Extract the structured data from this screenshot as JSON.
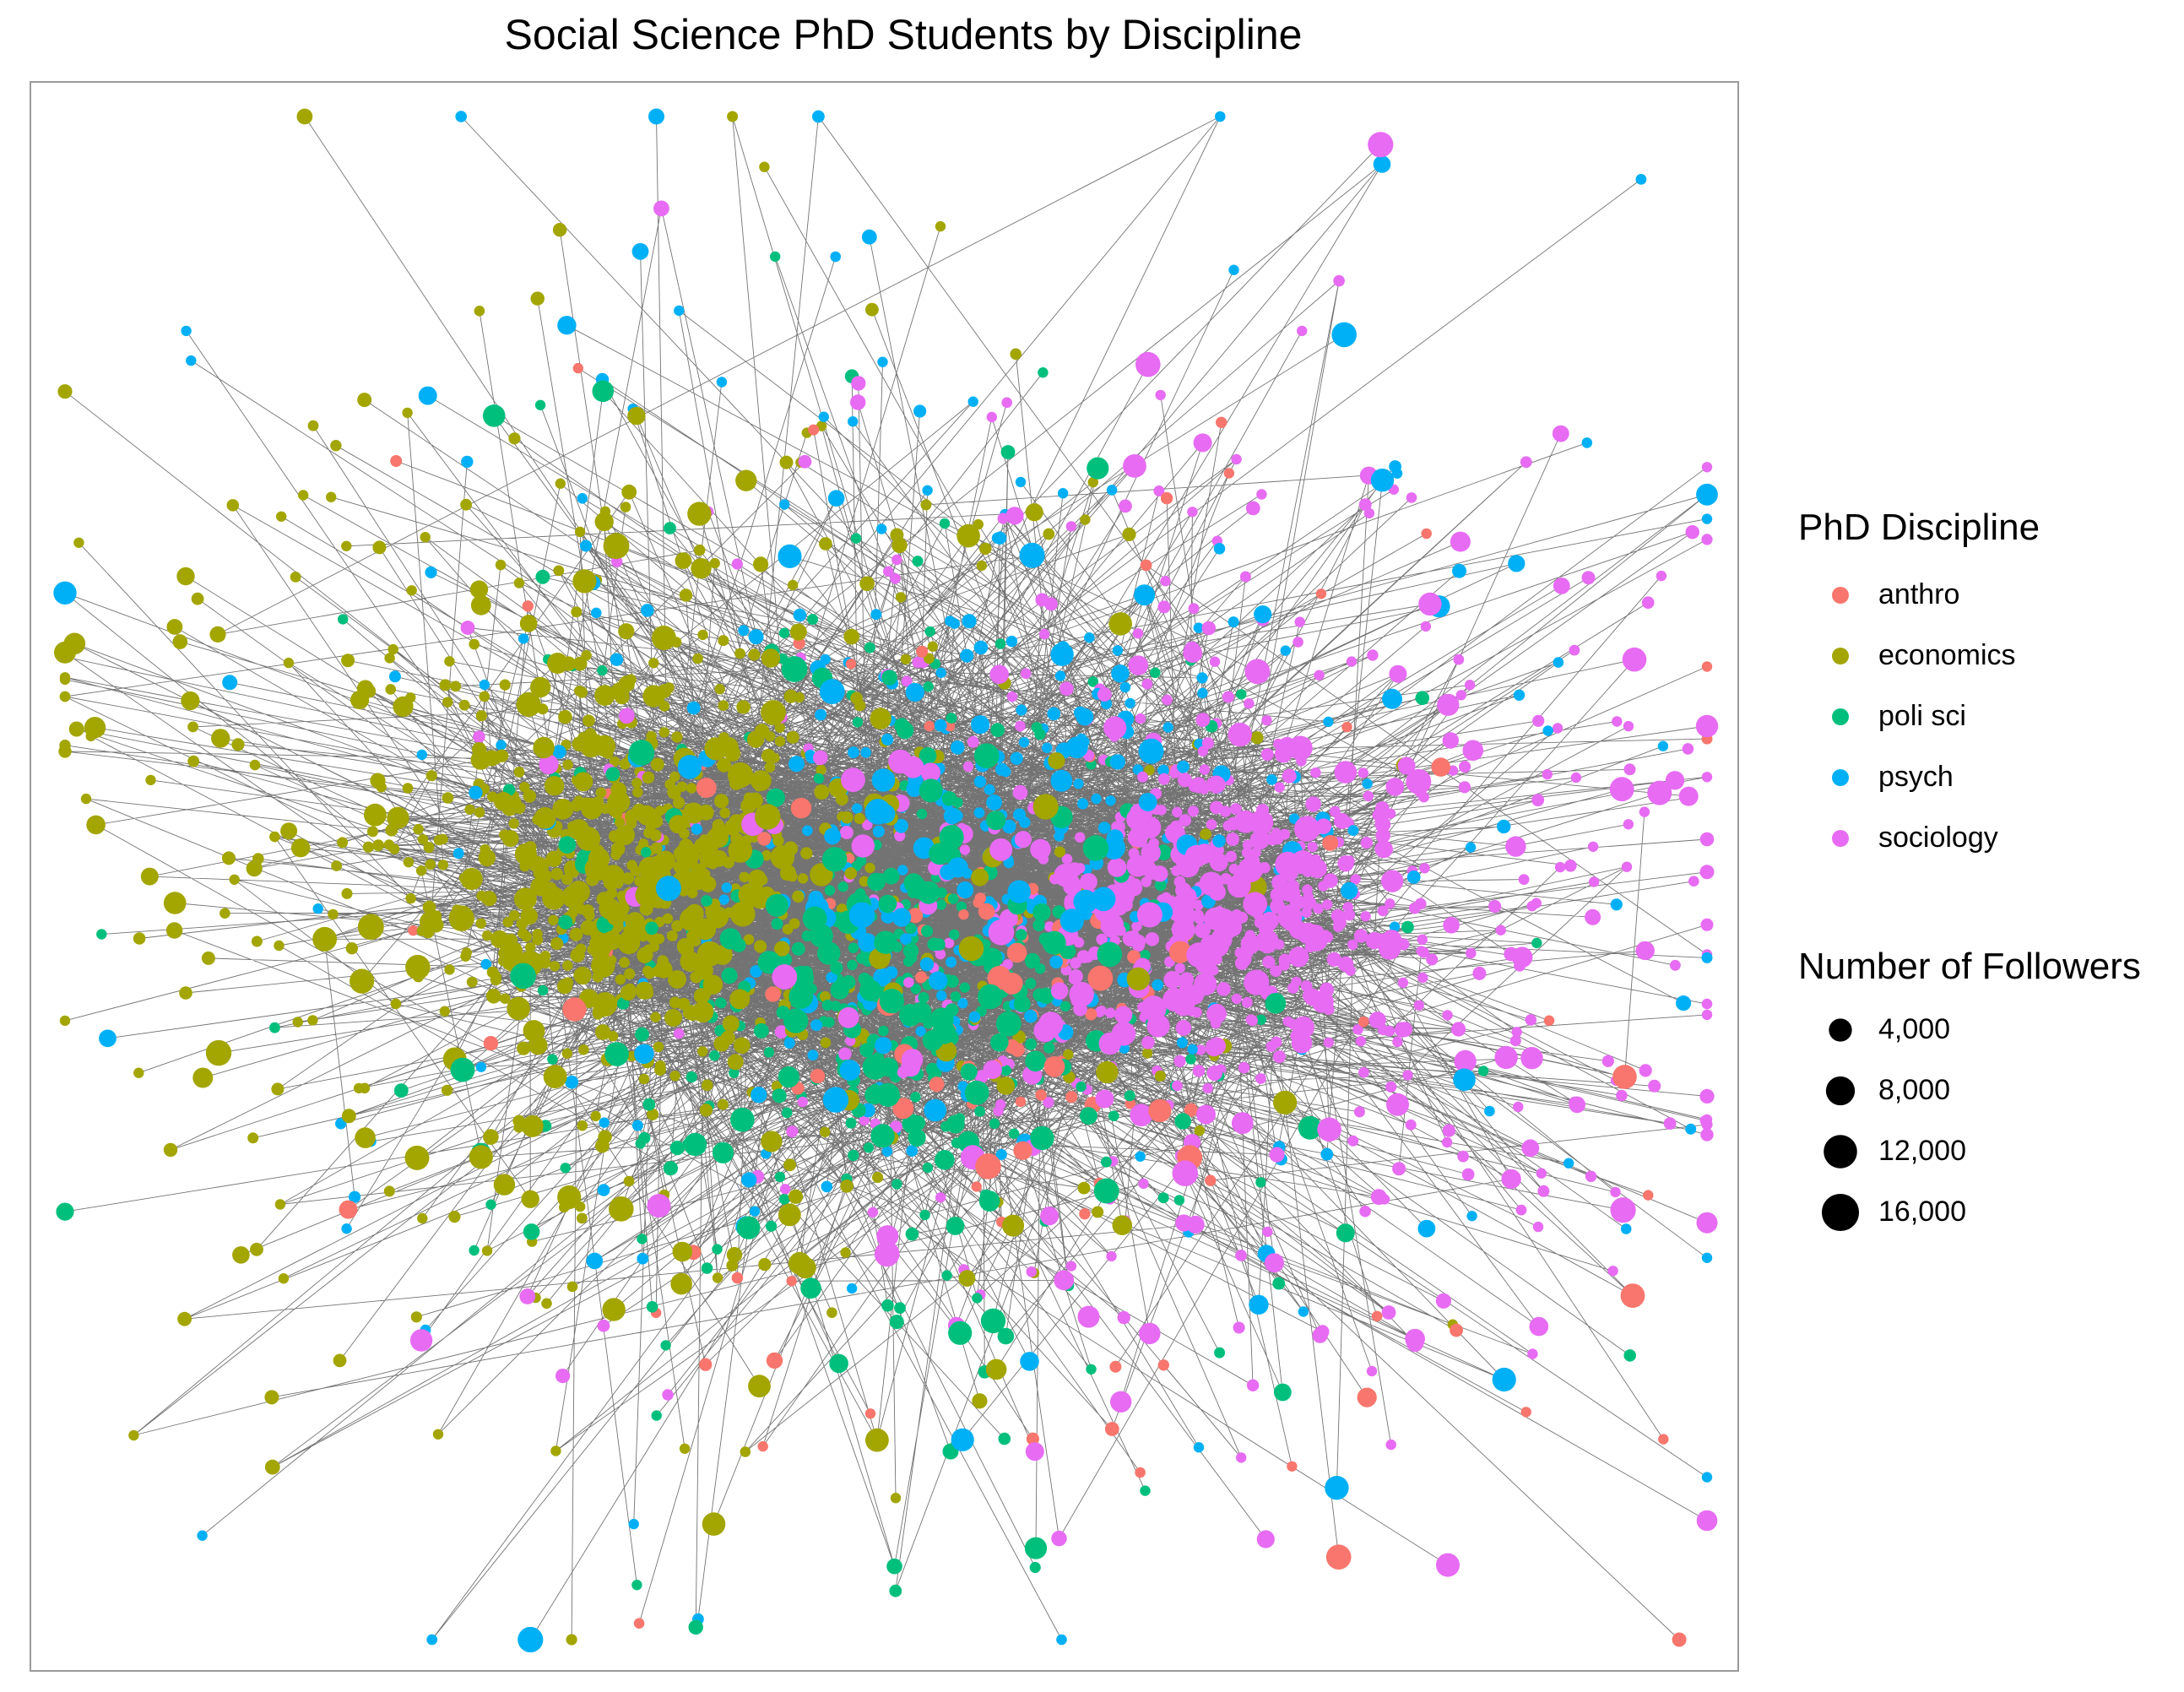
{
  "chart_data": {
    "type": "network",
    "title": "Social Science PhD Students by Discipline",
    "color_legend": {
      "title": "PhD Discipline",
      "entries": [
        {
          "label": "anthro",
          "color": "#F8766D"
        },
        {
          "label": "economics",
          "color": "#A3A500"
        },
        {
          "label": "poli sci",
          "color": "#00BF7D"
        },
        {
          "label": "psych",
          "color": "#00B0F6"
        },
        {
          "label": "sociology",
          "color": "#E76BF3"
        }
      ]
    },
    "size_legend": {
      "title": "Number of Followers",
      "entries": [
        {
          "label": "4,000",
          "value": 4000
        },
        {
          "label": "8,000",
          "value": 8000
        },
        {
          "label": "12,000",
          "value": 12000
        },
        {
          "label": "16,000",
          "value": 16000
        }
      ]
    },
    "clusters": [
      {
        "discipline": "economics",
        "nodes": 900
      },
      {
        "discipline": "sociology",
        "nodes": 800
      },
      {
        "discipline": "poli sci",
        "nodes": 450
      },
      {
        "discipline": "psych",
        "nodes": 420
      },
      {
        "discipline": "anthro",
        "nodes": 130
      }
    ],
    "edge_color": "#000000",
    "grid": false
  }
}
